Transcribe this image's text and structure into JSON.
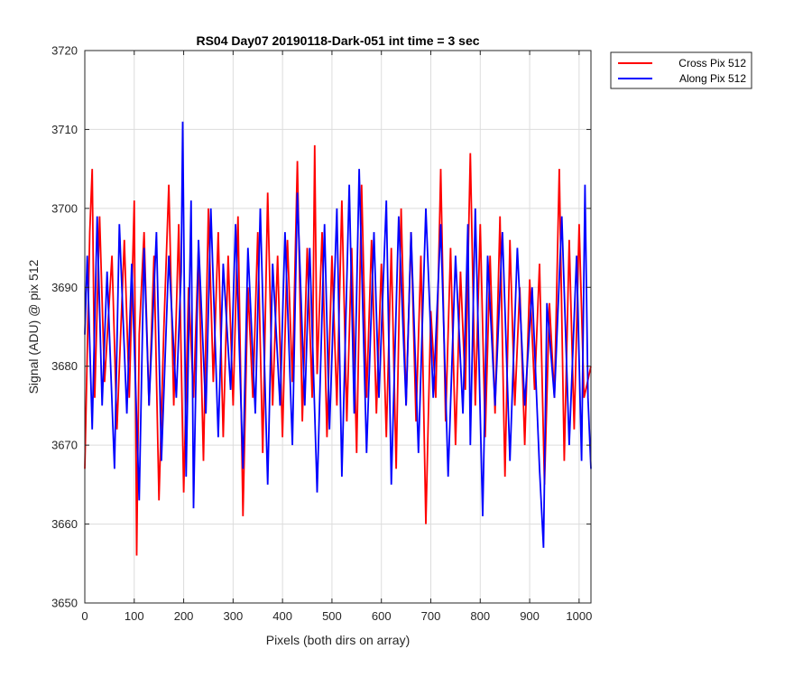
{
  "chart_data": {
    "type": "line",
    "title": "RS04 Day07 20190118-Dark-051 int time = 3 sec",
    "xlabel": "Pixels (both dirs on array)",
    "ylabel": "Signal (ADU) @ pix 512",
    "xlim": [
      0,
      1024
    ],
    "ylim": [
      3650,
      3720
    ],
    "xticks": [
      0,
      100,
      200,
      300,
      400,
      500,
      600,
      700,
      800,
      900,
      1000
    ],
    "yticks": [
      3650,
      3660,
      3670,
      3680,
      3690,
      3700,
      3710,
      3720
    ],
    "grid": true,
    "legend_position": "outside-top-right",
    "series": [
      {
        "name": "Cross Pix 512",
        "color": "#ff0000",
        "x": [
          0,
          10,
          15,
          20,
          30,
          40,
          55,
          65,
          80,
          90,
          100,
          105,
          110,
          120,
          130,
          140,
          150,
          160,
          170,
          180,
          190,
          200,
          210,
          220,
          230,
          240,
          250,
          260,
          270,
          280,
          290,
          300,
          310,
          320,
          330,
          340,
          350,
          360,
          370,
          380,
          390,
          400,
          410,
          420,
          430,
          440,
          450,
          460,
          465,
          470,
          480,
          490,
          500,
          510,
          520,
          530,
          540,
          550,
          560,
          570,
          580,
          590,
          600,
          610,
          620,
          630,
          640,
          650,
          660,
          670,
          680,
          690,
          700,
          710,
          720,
          730,
          740,
          750,
          760,
          770,
          780,
          790,
          800,
          810,
          820,
          830,
          840,
          850,
          860,
          870,
          880,
          890,
          900,
          910,
          920,
          930,
          940,
          950,
          960,
          970,
          980,
          990,
          1000,
          1010,
          1024
        ],
        "y": [
          3667,
          3697,
          3705,
          3676,
          3699,
          3678,
          3694,
          3672,
          3696,
          3676,
          3701,
          3656,
          3684,
          3697,
          3675,
          3694,
          3663,
          3685,
          3703,
          3675,
          3698,
          3664,
          3690,
          3676,
          3695,
          3668,
          3700,
          3678,
          3697,
          3671,
          3694,
          3675,
          3699,
          3661,
          3690,
          3676,
          3697,
          3669,
          3702,
          3675,
          3694,
          3671,
          3696,
          3678,
          3706,
          3673,
          3695,
          3676,
          3708,
          3679,
          3697,
          3671,
          3694,
          3675,
          3701,
          3673,
          3695,
          3669,
          3703,
          3676,
          3696,
          3674,
          3693,
          3671,
          3695,
          3667,
          3700,
          3675,
          3697,
          3673,
          3694,
          3660,
          3687,
          3676,
          3705,
          3673,
          3695,
          3670,
          3692,
          3677,
          3707,
          3675,
          3698,
          3671,
          3694,
          3674,
          3699,
          3666,
          3696,
          3675,
          3690,
          3670,
          3691,
          3677,
          3693,
          3665,
          3688,
          3676,
          3705,
          3668,
          3696,
          3672,
          3698,
          3676,
          3680
        ]
      },
      {
        "name": "Along Pix 512",
        "color": "#0000ff",
        "x": [
          0,
          5,
          15,
          25,
          35,
          45,
          60,
          70,
          85,
          95,
          110,
          120,
          130,
          145,
          155,
          170,
          185,
          195,
          198,
          205,
          215,
          220,
          230,
          245,
          255,
          270,
          280,
          295,
          305,
          320,
          330,
          345,
          355,
          370,
          380,
          395,
          405,
          420,
          430,
          445,
          455,
          470,
          485,
          495,
          510,
          520,
          535,
          545,
          555,
          570,
          585,
          595,
          610,
          620,
          635,
          650,
          660,
          675,
          690,
          705,
          720,
          735,
          750,
          765,
          775,
          780,
          790,
          805,
          815,
          830,
          845,
          860,
          875,
          890,
          905,
          920,
          928,
          935,
          950,
          965,
          980,
          995,
          1005,
          1012,
          1018,
          1024
        ],
        "y": [
          3684,
          3694,
          3672,
          3699,
          3675,
          3692,
          3667,
          3698,
          3674,
          3693,
          3663,
          3695,
          3675,
          3697,
          3668,
          3694,
          3676,
          3692,
          3711,
          3666,
          3701,
          3662,
          3696,
          3674,
          3700,
          3671,
          3693,
          3677,
          3698,
          3667,
          3695,
          3674,
          3700,
          3665,
          3693,
          3675,
          3697,
          3670,
          3702,
          3675,
          3695,
          3664,
          3698,
          3672,
          3700,
          3666,
          3703,
          3674,
          3705,
          3669,
          3697,
          3676,
          3701,
          3665,
          3699,
          3675,
          3697,
          3669,
          3700,
          3676,
          3698,
          3666,
          3694,
          3674,
          3698,
          3670,
          3700,
          3661,
          3694,
          3675,
          3697,
          3668,
          3695,
          3675,
          3690,
          3667,
          3657,
          3688,
          3676,
          3699,
          3670,
          3694,
          3668,
          3703,
          3676,
          3667
        ]
      }
    ]
  }
}
